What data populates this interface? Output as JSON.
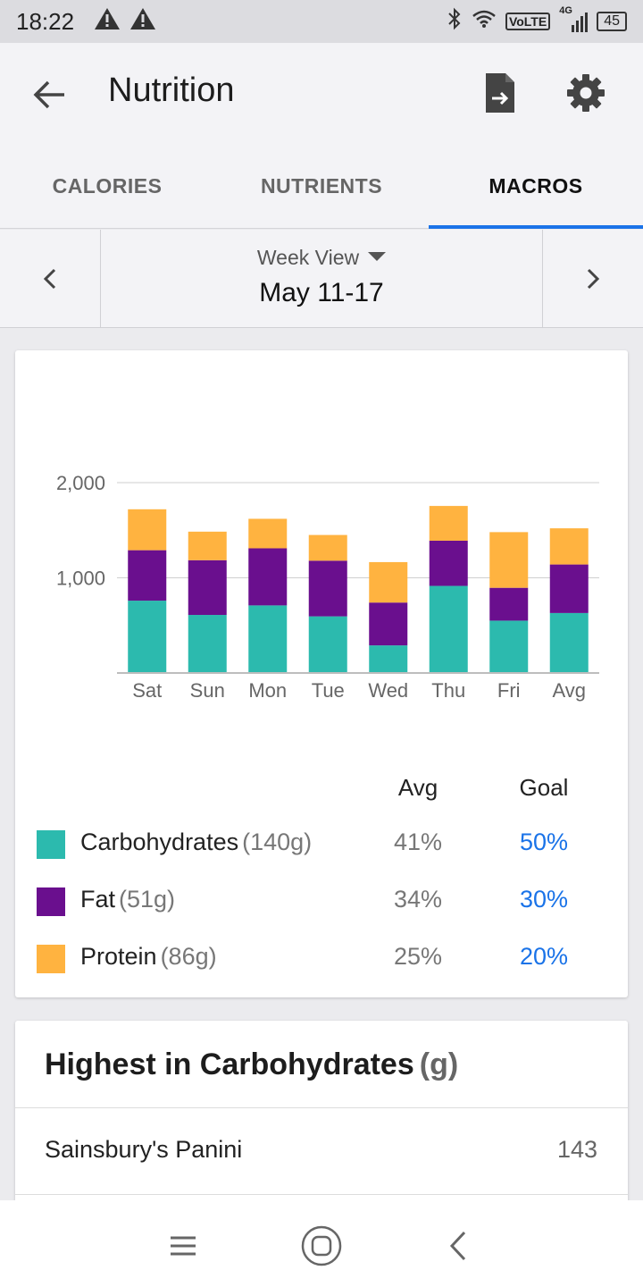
{
  "status_bar": {
    "time": "18:22",
    "network": "VoLTE",
    "network_type": "4G",
    "battery": "45"
  },
  "app_bar": {
    "title": "Nutrition",
    "back_icon": "arrow-left-icon",
    "export_icon": "file-export-icon",
    "settings_icon": "gear-icon"
  },
  "tabs": [
    {
      "label": "CALORIES",
      "active": false
    },
    {
      "label": "NUTRIENTS",
      "active": false
    },
    {
      "label": "MACROS",
      "active": true
    }
  ],
  "date_nav": {
    "view_mode": "Week View",
    "range": "May 11-17"
  },
  "colors": {
    "carbohydrates": "#2cbaae",
    "fat": "#6a0f8e",
    "protein": "#ffb340",
    "accent": "#1a73e8"
  },
  "chart_data": {
    "type": "bar",
    "stacked": true,
    "categories": [
      "Sat",
      "Sun",
      "Mon",
      "Tue",
      "Wed",
      "Thu",
      "Fri",
      "Avg"
    ],
    "series": [
      {
        "name": "Carbohydrates",
        "color": "#2cbaae",
        "values": [
          760,
          610,
          710,
          595,
          290,
          915,
          550,
          630
        ]
      },
      {
        "name": "Fat",
        "color": "#6a0f8e",
        "values": [
          530,
          575,
          600,
          585,
          450,
          475,
          345,
          510
        ]
      },
      {
        "name": "Protein",
        "color": "#ffb340",
        "values": [
          430,
          300,
          310,
          270,
          425,
          365,
          585,
          380
        ]
      }
    ],
    "ylim": [
      0,
      2000
    ],
    "yticks": [
      1000,
      2000
    ],
    "ytick_labels": [
      "1,000",
      "2,000"
    ],
    "grid": true,
    "legend": "none"
  },
  "macro_table": {
    "headers": {
      "avg": "Avg",
      "goal": "Goal"
    },
    "rows": [
      {
        "name": "Carbohydrates",
        "grams": "(140g)",
        "avg": "41%",
        "goal": "50%",
        "color": "#2cbaae"
      },
      {
        "name": "Fat",
        "grams": "(51g)",
        "avg": "34%",
        "goal": "30%",
        "color": "#6a0f8e"
      },
      {
        "name": "Protein",
        "grams": "(86g)",
        "avg": "25%",
        "goal": "20%",
        "color": "#ffb340"
      }
    ]
  },
  "highest": {
    "title": "Highest in Carbohydrates",
    "unit": "(g)",
    "items": [
      {
        "name": "Sainsbury's Panini",
        "value": "143"
      }
    ]
  }
}
